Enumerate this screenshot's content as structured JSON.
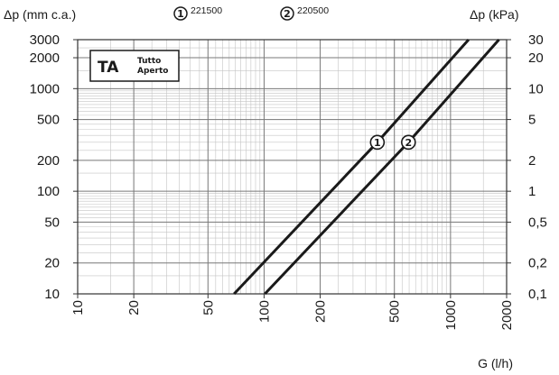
{
  "chart_data": {
    "type": "line",
    "title": "",
    "xlabel": "G (l/h)",
    "ylabel_left": "Δp (mm c.a.)",
    "ylabel_right": "Δp (kPa)",
    "x_scale": "log",
    "y_scale": "log",
    "xlim": [
      10,
      2000
    ],
    "ylim": [
      10,
      3000
    ],
    "grid": true,
    "x_ticks": [
      "10",
      "20",
      "50",
      "100",
      "200",
      "500",
      "1000",
      "2000"
    ],
    "y_ticks_left": [
      "3000",
      "2000",
      "1000",
      "500",
      "200",
      "100",
      "50",
      "20",
      "10"
    ],
    "y_ticks_right": [
      "30",
      "20",
      "10",
      "5",
      "2",
      "1",
      "0,5",
      "0,2",
      "0,1"
    ],
    "legend": [
      {
        "marker": "1",
        "code": "221500"
      },
      {
        "marker": "2",
        "code": "220500"
      }
    ],
    "annotation": {
      "abbr": "TA",
      "line1": "Tutto",
      "line2": "Aperto"
    },
    "series": [
      {
        "marker": "1",
        "points": [
          [
            69,
            10
          ],
          [
            405,
            300
          ],
          [
            1250,
            3000
          ]
        ]
      },
      {
        "marker": "2",
        "points": [
          [
            101,
            10
          ],
          [
            595,
            300
          ],
          [
            1820,
            3000
          ]
        ]
      }
    ]
  }
}
